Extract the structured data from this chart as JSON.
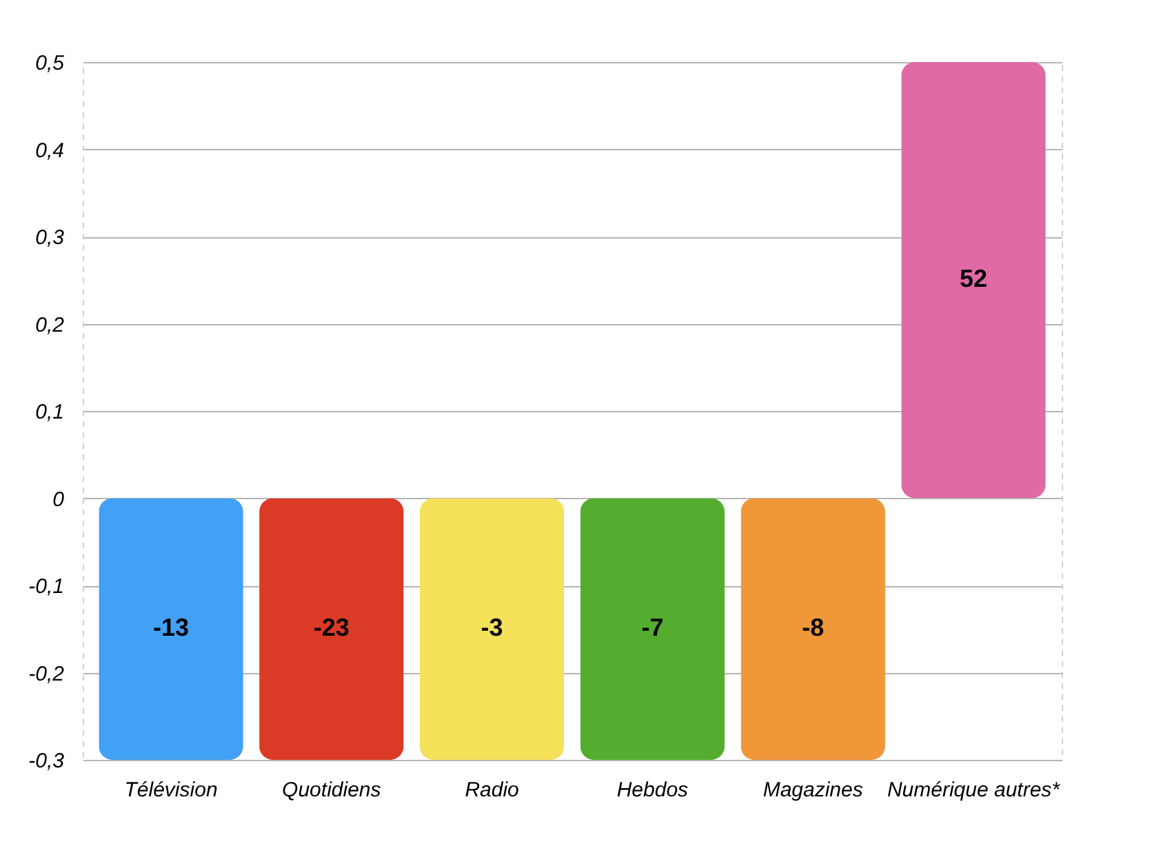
{
  "chart_data": {
    "type": "bar",
    "categories": [
      "Télévision",
      "Quotidiens",
      "Radio",
      "Hebdos",
      "Magazines",
      "Numérique autres*"
    ],
    "values": [
      -0.3,
      -0.3,
      -0.3,
      -0.3,
      -0.3,
      0.5
    ],
    "colors": [
      "#42a0f5",
      "#db3b26",
      "#f5e15a",
      "#55ad30",
      "#f0973a",
      "#df6aa6"
    ],
    "annotations": [
      "-13",
      "-23",
      "-3",
      "-7",
      "-8",
      "52"
    ],
    "ylim": [
      -0.3,
      0.5
    ],
    "yticks": [
      {
        "value": -0.3,
        "label": "-0,3"
      },
      {
        "value": -0.2,
        "label": "-0,2"
      },
      {
        "value": -0.1,
        "label": "-0,1"
      },
      0,
      {
        "value": 0.1,
        "label": "0,1"
      },
      {
        "value": 0.2,
        "label": "0,2"
      },
      {
        "value": 0.3,
        "label": "0,3"
      },
      {
        "value": 0.4,
        "label": "0,4"
      },
      {
        "value": 0.5,
        "label": "0,5"
      }
    ],
    "grid": "y"
  }
}
